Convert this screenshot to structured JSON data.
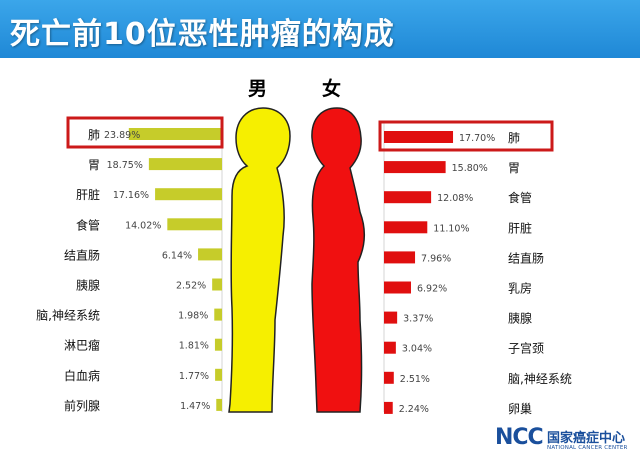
{
  "header": {
    "title": "死亡前10位恶性肿瘤的构成"
  },
  "genders": {
    "male": "男",
    "female": "女"
  },
  "colors": {
    "header_blue": "#2a93dc",
    "male_bar": "#c6cc2a",
    "male_body": "#f6ef00",
    "female_bar": "#e00f0f",
    "female_body": "#f01010",
    "highlight_box": "#cc1a1a"
  },
  "logo": {
    "mark": "NCC",
    "name_cn": "国家癌症中心",
    "name_en": "NATIONAL CANCER CENTER"
  },
  "chart_data": [
    {
      "type": "bar",
      "orientation": "horizontal",
      "series": [
        {
          "name": "男",
          "categories": [
            "肺",
            "胃",
            "肝脏",
            "食管",
            "结直肠",
            "胰腺",
            "脑,神经系统",
            "淋巴瘤",
            "白血病",
            "前列腺"
          ],
          "values": [
            23.89,
            18.75,
            17.16,
            14.02,
            6.14,
            2.52,
            1.98,
            1.81,
            1.77,
            1.47
          ],
          "labels": [
            "23.89%",
            "18.75%",
            "17.16%",
            "14.02%",
            "6.14%",
            "2.52%",
            "1.98%",
            "1.81%",
            "1.77%",
            "1.47%"
          ]
        }
      ],
      "highlight": "肺"
    },
    {
      "type": "bar",
      "orientation": "horizontal",
      "series": [
        {
          "name": "女",
          "categories": [
            "肺",
            "胃",
            "食管",
            "肝脏",
            "结直肠",
            "乳房",
            "胰腺",
            "子宫颈",
            "脑,神经系统",
            "卵巢"
          ],
          "values": [
            17.7,
            15.8,
            12.08,
            11.1,
            7.96,
            6.92,
            3.37,
            3.04,
            2.51,
            2.24
          ],
          "labels": [
            "17.70%",
            "15.80%",
            "12.08%",
            "11.10%",
            "7.96%",
            "6.92%",
            "3.37%",
            "3.04%",
            "2.51%",
            "2.24%"
          ]
        }
      ],
      "highlight": "肺"
    }
  ]
}
